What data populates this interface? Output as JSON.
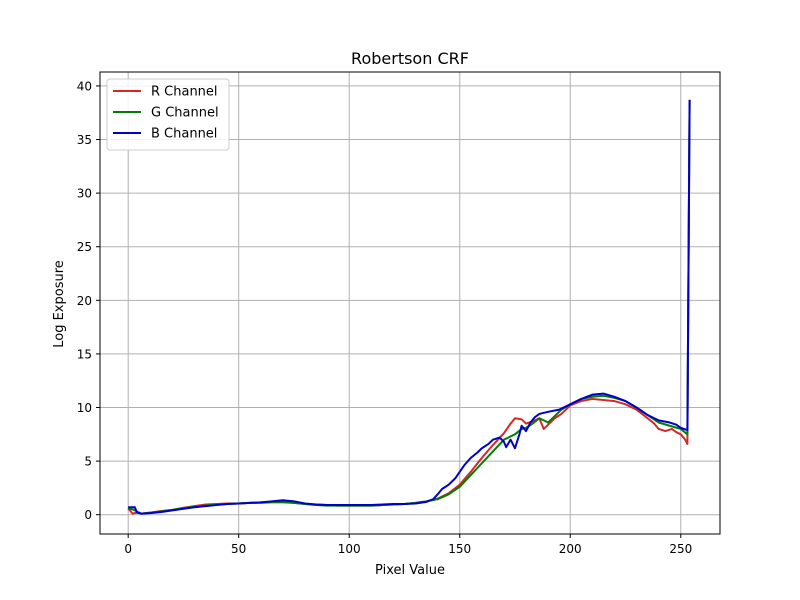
{
  "chart_data": {
    "type": "line",
    "title": "Robertson CRF",
    "xlabel": "Pixel Value",
    "ylabel": "Log Exposure",
    "xlim": [
      -12.75,
      267.75
    ],
    "ylim": [
      -1.8,
      41.3
    ],
    "xticks": [
      0,
      50,
      100,
      150,
      200,
      250
    ],
    "yticks": [
      0,
      5,
      10,
      15,
      20,
      25,
      30,
      35,
      40
    ],
    "grid": true,
    "legend_position": "top-left",
    "series": [
      {
        "name": "R Channel",
        "color": "#d62728",
        "points": [
          [
            0,
            0.6
          ],
          [
            2,
            0.1
          ],
          [
            4,
            0.2
          ],
          [
            6,
            0.1
          ],
          [
            10,
            0.2
          ],
          [
            15,
            0.35
          ],
          [
            20,
            0.45
          ],
          [
            25,
            0.65
          ],
          [
            30,
            0.8
          ],
          [
            35,
            0.95
          ],
          [
            40,
            1.0
          ],
          [
            45,
            1.05
          ],
          [
            50,
            1.05
          ],
          [
            55,
            1.1
          ],
          [
            60,
            1.1
          ],
          [
            65,
            1.15
          ],
          [
            70,
            1.15
          ],
          [
            75,
            1.1
          ],
          [
            80,
            1.0
          ],
          [
            85,
            0.95
          ],
          [
            90,
            0.9
          ],
          [
            95,
            0.85
          ],
          [
            100,
            0.85
          ],
          [
            105,
            0.85
          ],
          [
            110,
            0.85
          ],
          [
            115,
            0.9
          ],
          [
            120,
            0.95
          ],
          [
            125,
            1.0
          ],
          [
            130,
            1.1
          ],
          [
            135,
            1.25
          ],
          [
            140,
            1.5
          ],
          [
            145,
            2.0
          ],
          [
            150,
            2.8
          ],
          [
            155,
            4.0
          ],
          [
            160,
            5.3
          ],
          [
            165,
            6.5
          ],
          [
            170,
            7.6
          ],
          [
            173,
            8.5
          ],
          [
            175,
            9.0
          ],
          [
            178,
            8.9
          ],
          [
            180,
            8.5
          ],
          [
            183,
            8.7
          ],
          [
            186,
            9.0
          ],
          [
            188,
            8.0
          ],
          [
            190,
            8.4
          ],
          [
            193,
            9.0
          ],
          [
            196,
            9.4
          ],
          [
            200,
            10.2
          ],
          [
            205,
            10.6
          ],
          [
            210,
            10.8
          ],
          [
            215,
            10.7
          ],
          [
            220,
            10.6
          ],
          [
            225,
            10.3
          ],
          [
            230,
            9.8
          ],
          [
            235,
            9.0
          ],
          [
            238,
            8.5
          ],
          [
            240,
            8.0
          ],
          [
            243,
            7.8
          ],
          [
            246,
            8.0
          ],
          [
            248,
            7.7
          ],
          [
            250,
            7.5
          ],
          [
            252,
            7.0
          ],
          [
            253,
            6.6
          ],
          [
            254,
            38.7
          ]
        ]
      },
      {
        "name": "G Channel",
        "color": "#008000",
        "points": [
          [
            0,
            0.6
          ],
          [
            2,
            0.5
          ],
          [
            4,
            0.3
          ],
          [
            6,
            0.1
          ],
          [
            10,
            0.2
          ],
          [
            15,
            0.3
          ],
          [
            20,
            0.45
          ],
          [
            25,
            0.6
          ],
          [
            30,
            0.75
          ],
          [
            35,
            0.85
          ],
          [
            40,
            0.95
          ],
          [
            45,
            1.0
          ],
          [
            50,
            1.05
          ],
          [
            55,
            1.1
          ],
          [
            60,
            1.15
          ],
          [
            65,
            1.2
          ],
          [
            70,
            1.2
          ],
          [
            75,
            1.1
          ],
          [
            80,
            1.0
          ],
          [
            85,
            0.9
          ],
          [
            90,
            0.85
          ],
          [
            95,
            0.85
          ],
          [
            100,
            0.85
          ],
          [
            105,
            0.85
          ],
          [
            110,
            0.85
          ],
          [
            115,
            0.9
          ],
          [
            120,
            0.95
          ],
          [
            125,
            1.0
          ],
          [
            130,
            1.1
          ],
          [
            135,
            1.25
          ],
          [
            140,
            1.45
          ],
          [
            145,
            1.9
          ],
          [
            150,
            2.6
          ],
          [
            155,
            3.7
          ],
          [
            160,
            4.8
          ],
          [
            165,
            5.9
          ],
          [
            170,
            7.0
          ],
          [
            175,
            7.5
          ],
          [
            178,
            8.0
          ],
          [
            180,
            8.1
          ],
          [
            183,
            8.5
          ],
          [
            186,
            9.0
          ],
          [
            188,
            8.8
          ],
          [
            190,
            8.6
          ],
          [
            193,
            9.2
          ],
          [
            196,
            9.8
          ],
          [
            200,
            10.3
          ],
          [
            205,
            10.8
          ],
          [
            210,
            11.0
          ],
          [
            215,
            11.1
          ],
          [
            220,
            10.9
          ],
          [
            225,
            10.6
          ],
          [
            230,
            10.0
          ],
          [
            235,
            9.3
          ],
          [
            240,
            8.6
          ],
          [
            245,
            8.3
          ],
          [
            250,
            8.0
          ],
          [
            253,
            7.5
          ],
          [
            254,
            38.7
          ]
        ]
      },
      {
        "name": "B Channel",
        "color": "#0000cc",
        "points": [
          [
            0,
            0.7
          ],
          [
            3,
            0.7
          ],
          [
            4,
            0.2
          ],
          [
            6,
            0.1
          ],
          [
            10,
            0.15
          ],
          [
            15,
            0.25
          ],
          [
            20,
            0.4
          ],
          [
            25,
            0.55
          ],
          [
            30,
            0.7
          ],
          [
            35,
            0.8
          ],
          [
            40,
            0.9
          ],
          [
            45,
            1.0
          ],
          [
            50,
            1.05
          ],
          [
            55,
            1.1
          ],
          [
            60,
            1.15
          ],
          [
            65,
            1.25
          ],
          [
            70,
            1.35
          ],
          [
            75,
            1.25
          ],
          [
            80,
            1.05
          ],
          [
            85,
            0.95
          ],
          [
            90,
            0.9
          ],
          [
            95,
            0.9
          ],
          [
            100,
            0.9
          ],
          [
            105,
            0.9
          ],
          [
            110,
            0.9
          ],
          [
            115,
            0.95
          ],
          [
            120,
            1.0
          ],
          [
            125,
            1.0
          ],
          [
            130,
            1.05
          ],
          [
            135,
            1.2
          ],
          [
            138,
            1.45
          ],
          [
            140,
            1.9
          ],
          [
            142,
            2.4
          ],
          [
            145,
            2.8
          ],
          [
            148,
            3.4
          ],
          [
            150,
            4.0
          ],
          [
            152,
            4.6
          ],
          [
            155,
            5.3
          ],
          [
            158,
            5.8
          ],
          [
            160,
            6.2
          ],
          [
            163,
            6.6
          ],
          [
            165,
            7.0
          ],
          [
            168,
            7.2
          ],
          [
            170,
            6.8
          ],
          [
            171,
            6.3
          ],
          [
            173,
            7.0
          ],
          [
            175,
            6.2
          ],
          [
            177,
            7.5
          ],
          [
            178,
            8.3
          ],
          [
            180,
            7.8
          ],
          [
            182,
            8.6
          ],
          [
            184,
            9.1
          ],
          [
            186,
            9.4
          ],
          [
            190,
            9.6
          ],
          [
            195,
            9.8
          ],
          [
            200,
            10.3
          ],
          [
            205,
            10.8
          ],
          [
            210,
            11.2
          ],
          [
            215,
            11.3
          ],
          [
            220,
            11.0
          ],
          [
            225,
            10.6
          ],
          [
            230,
            10.0
          ],
          [
            235,
            9.3
          ],
          [
            240,
            8.8
          ],
          [
            245,
            8.6
          ],
          [
            248,
            8.4
          ],
          [
            250,
            8.1
          ],
          [
            253,
            7.9
          ],
          [
            254,
            38.7
          ]
        ]
      }
    ]
  }
}
